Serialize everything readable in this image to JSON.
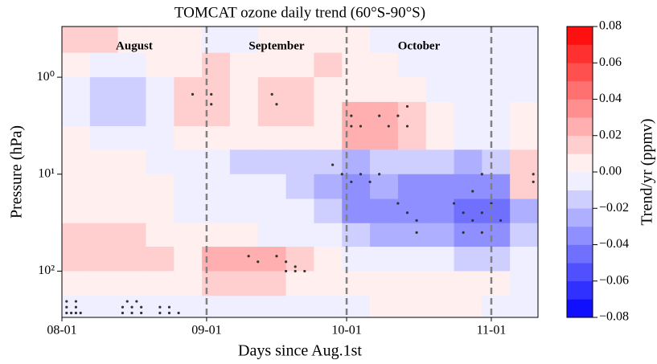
{
  "chart_data": {
    "type": "heatmap",
    "title": "TOMCAT ozone daily trend (60°S-90°S)",
    "xlabel": "Days since Aug.1st",
    "ylabel": "Pressure (hPa)",
    "colorbar_label": "Trend/yr (ppmv)",
    "colormap": "bwr",
    "ylog": true,
    "y_inverted": true,
    "xlim": [
      0,
      102
    ],
    "xticks": [
      {
        "value": 0,
        "label": "08-01"
      },
      {
        "value": 31,
        "label": "09-01"
      },
      {
        "value": 61,
        "label": "10-01"
      },
      {
        "value": 92,
        "label": "11-01"
      }
    ],
    "ylim": [
      0.3,
      300
    ],
    "yticks": [
      {
        "value": 1,
        "label": "10⁰"
      },
      {
        "value": 10,
        "label": "10¹"
      },
      {
        "value": 100,
        "label": "10²"
      }
    ],
    "vlines": [
      31,
      61,
      92
    ],
    "annotations": [
      "August",
      "September",
      "October"
    ],
    "x_edges": [
      0,
      6,
      12,
      18,
      24,
      30,
      36,
      42,
      48,
      54,
      60,
      66,
      72,
      78,
      84,
      90,
      96,
      102
    ],
    "y_edges": [
      0.3,
      0.56,
      1,
      1.8,
      3.2,
      5.6,
      10,
      18,
      32,
      56,
      100,
      180,
      300
    ],
    "z": [
      [
        0.01,
        0.01,
        0.005,
        0.005,
        0.005,
        -0.005,
        -0.005,
        0.005,
        0.005,
        0.005,
        0.005,
        -0.005,
        -0.005,
        -0.005,
        -0.005,
        -0.005,
        -0.005
      ],
      [
        0.005,
        -0.005,
        -0.005,
        0.005,
        0.005,
        0.01,
        0.005,
        0.005,
        0.005,
        0.01,
        0.005,
        0.005,
        -0.005,
        -0.005,
        -0.005,
        -0.005,
        -0.005
      ],
      [
        -0.005,
        -0.02,
        -0.015,
        -0.01,
        0.015,
        0.015,
        0.005,
        0.015,
        0.015,
        0.005,
        0.005,
        0.005,
        0.005,
        -0.005,
        -0.005,
        -0.005,
        -0.005
      ],
      [
        -0.005,
        -0.02,
        -0.015,
        -0.01,
        0.015,
        0.01,
        0.005,
        0.015,
        0.015,
        0.005,
        0.025,
        0.025,
        0.015,
        0.005,
        -0.005,
        -0.005,
        0.005
      ],
      [
        0.005,
        -0.01,
        -0.005,
        -0.005,
        0.005,
        0.005,
        0.005,
        0.005,
        0.005,
        0.005,
        0.025,
        0.025,
        0.015,
        0.005,
        -0.005,
        -0.005,
        0.005
      ],
      [
        0.005,
        0.005,
        0.005,
        -0.005,
        -0.005,
        -0.005,
        -0.015,
        -0.015,
        -0.015,
        -0.02,
        -0.025,
        -0.015,
        -0.015,
        -0.02,
        -0.025,
        -0.02,
        0.015
      ],
      [
        0.005,
        0.005,
        0.005,
        0.005,
        -0.005,
        -0.005,
        -0.005,
        -0.01,
        -0.015,
        -0.025,
        -0.035,
        -0.03,
        -0.035,
        -0.035,
        -0.04,
        -0.035,
        0.01
      ],
      [
        0.005,
        0.005,
        0.005,
        0.005,
        -0.005,
        -0.005,
        -0.005,
        -0.005,
        -0.01,
        -0.015,
        -0.035,
        -0.035,
        -0.04,
        -0.04,
        -0.045,
        -0.045,
        -0.025
      ],
      [
        0.01,
        0.01,
        0.01,
        0.005,
        0.005,
        0.005,
        0.005,
        -0.005,
        -0.005,
        -0.01,
        -0.02,
        -0.025,
        -0.025,
        -0.03,
        -0.035,
        -0.035,
        -0.015
      ],
      [
        0.01,
        0.01,
        0.01,
        0.01,
        0.005,
        0.02,
        0.025,
        0.025,
        0.015,
        0.005,
        -0.005,
        -0.005,
        -0.005,
        -0.01,
        -0.015,
        -0.015,
        -0.005
      ],
      [
        0.005,
        0.005,
        0.005,
        0.005,
        0.005,
        0.01,
        0.01,
        0.015,
        0.005,
        0.005,
        0.005,
        0.005,
        0.005,
        0.005,
        0.005,
        0.005,
        -0.005
      ],
      [
        -0.005,
        -0.005,
        -0.01,
        -0.005,
        -0.005,
        -0.005,
        -0.005,
        -0.005,
        -0.005,
        -0.005,
        -0.005,
        0.005,
        0.005,
        0.005,
        0.005,
        -0.005,
        -0.005
      ]
    ],
    "stippling": {
      "x": [
        1,
        2,
        3,
        4,
        1,
        3,
        1,
        3,
        13,
        15,
        17,
        13,
        15,
        17,
        14,
        16,
        21,
        23,
        25,
        21,
        23,
        28,
        32,
        32,
        45,
        46,
        62,
        62,
        64,
        68,
        70,
        72,
        74,
        74,
        58,
        60,
        62,
        64,
        66,
        68,
        72,
        74,
        76,
        76,
        84,
        86,
        88,
        90,
        92,
        94,
        86,
        90,
        88,
        90,
        101,
        101,
        46,
        48,
        50,
        48,
        50,
        52,
        40,
        42
      ],
      "y": [
        270,
        270,
        270,
        270,
        235,
        235,
        205,
        205,
        270,
        270,
        270,
        235,
        235,
        235,
        205,
        205,
        270,
        270,
        270,
        235,
        235,
        1.5,
        1.5,
        1.9,
        1.5,
        1.9,
        2.5,
        3.2,
        3.2,
        2.5,
        3.2,
        2.5,
        2,
        3.2,
        8,
        10,
        12,
        10,
        12,
        10,
        20,
        25,
        30,
        40,
        20,
        25,
        30,
        25,
        20,
        30,
        40,
        40,
        15,
        10,
        12,
        10,
        70,
        80,
        90,
        100,
        100,
        100,
        70,
        80
      ]
    },
    "clim": [
      -0.08,
      0.08
    ],
    "clevels": 16,
    "cticks": [
      {
        "value": -0.08,
        "label": "−0.08"
      },
      {
        "value": -0.06,
        "label": "−0.06"
      },
      {
        "value": -0.04,
        "label": "−0.04"
      },
      {
        "value": -0.02,
        "label": "−0.02"
      },
      {
        "value": 0,
        "label": "0.00"
      },
      0.02,
      0.04,
      0.06,
      0.08
    ]
  }
}
